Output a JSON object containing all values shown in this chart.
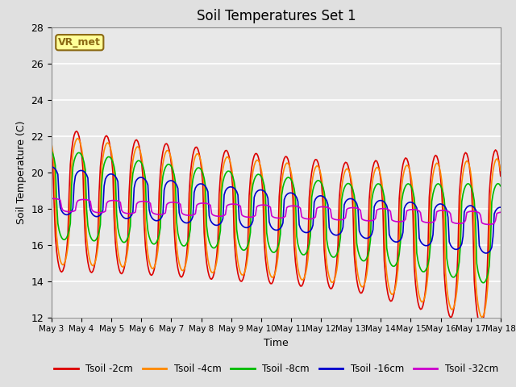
{
  "title": "Soil Temperatures Set 1",
  "ylabel": "Soil Temperature (C)",
  "xlabel": "Time",
  "ylim": [
    12,
    28
  ],
  "bg_color": "#e8e8e8",
  "fig_bg_color": "#e0e0e0",
  "annotation_text": "VR_met",
  "annotation_bg": "#ffff99",
  "annotation_border": "#8B6914",
  "grid_color": "white",
  "series": {
    "Tsoil -2cm": {
      "color": "#dd0000",
      "lw": 1.2
    },
    "Tsoil -4cm": {
      "color": "#ff8800",
      "lw": 1.2
    },
    "Tsoil -8cm": {
      "color": "#00bb00",
      "lw": 1.2
    },
    "Tsoil -16cm": {
      "color": "#0000cc",
      "lw": 1.2
    },
    "Tsoil -32cm": {
      "color": "#cc00cc",
      "lw": 1.2
    }
  },
  "xtick_labels": [
    "May 3",
    "May 4",
    "May 5",
    "May 6",
    "May 7",
    "May 8",
    "May 9",
    "May 10",
    "May 11",
    "May 12",
    "May 13",
    "May 14",
    "May 15",
    "May 16",
    "May 17",
    "May 18"
  ],
  "ytick_labels": [
    "12",
    "14",
    "16",
    "18",
    "20",
    "22",
    "24",
    "26",
    "28"
  ]
}
